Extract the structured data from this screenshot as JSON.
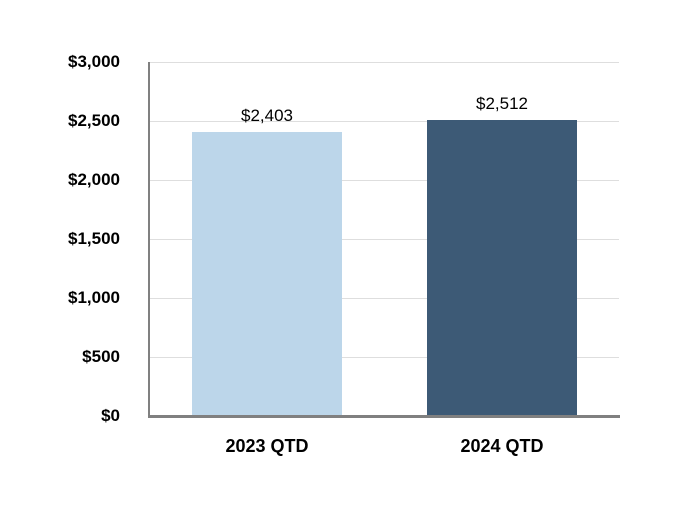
{
  "chart_data": {
    "type": "bar",
    "title": "",
    "xlabel": "",
    "ylabel": "",
    "categories": [
      "2023 QTD",
      "2024 QTD"
    ],
    "values": [
      2403,
      2512
    ],
    "data_labels": [
      "$2,403",
      "$2,512"
    ],
    "ylim": [
      0,
      3000
    ],
    "ytick_interval": 500,
    "ytick_labels": [
      "$0",
      "$500",
      "$1,000",
      "$1,500",
      "$2,000",
      "$2,500",
      "$3,000"
    ],
    "grid": "horizontal",
    "legend_position": "none",
    "bar_colors": [
      "#BCD6EA",
      "#3D5A76"
    ],
    "gridline_color": "#DEDEDE",
    "axis_line_color": "#808080",
    "text_color": "#000000",
    "background_color": "#FFFFFF"
  }
}
